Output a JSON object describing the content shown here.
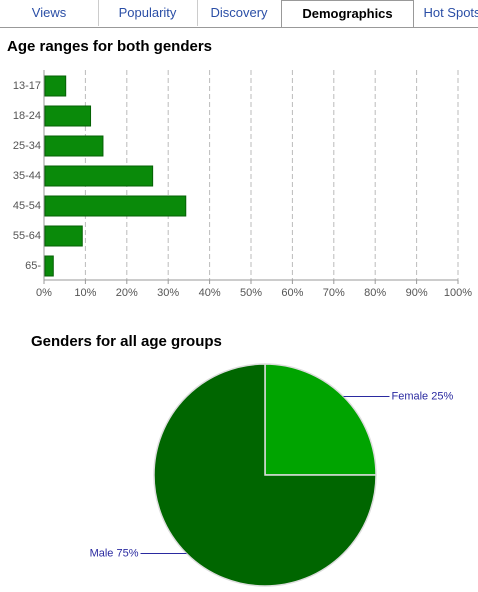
{
  "tabs": [
    "Views",
    "Popularity",
    "Discovery",
    "Demographics",
    "Hot Spots"
  ],
  "active_tab": 3,
  "chart_data": [
    {
      "type": "hbar",
      "title": "Age ranges for both genders",
      "categories": [
        "13-17",
        "18-24",
        "25-34",
        "35-44",
        "45-54",
        "55-64",
        "65-"
      ],
      "values": [
        5,
        11,
        14,
        26,
        34,
        9,
        2
      ],
      "color": "#0a8a0a",
      "xlim": [
        0,
        100
      ],
      "xticks": [
        {
          "value": 0,
          "label": "0%"
        },
        {
          "value": 10,
          "label": "10%"
        },
        {
          "value": 20,
          "label": "20%"
        },
        {
          "value": 30,
          "label": "30%"
        },
        {
          "value": 40,
          "label": "40%"
        },
        {
          "value": 50,
          "label": "50%"
        },
        {
          "value": 60,
          "label": "60%"
        },
        {
          "value": 70,
          "label": "70%"
        },
        {
          "value": 80,
          "label": "80%"
        },
        {
          "value": 90,
          "label": "90%"
        },
        {
          "value": 100,
          "label": "100%"
        }
      ],
      "grid": true
    },
    {
      "type": "pie",
      "title": "Genders for all age groups",
      "categories": [
        "Female",
        "Male"
      ],
      "values": [
        25,
        75
      ],
      "value_labels": [
        "Female 25%",
        "Male 75%"
      ],
      "colors": [
        "#00a400",
        "#006600"
      ]
    }
  ]
}
